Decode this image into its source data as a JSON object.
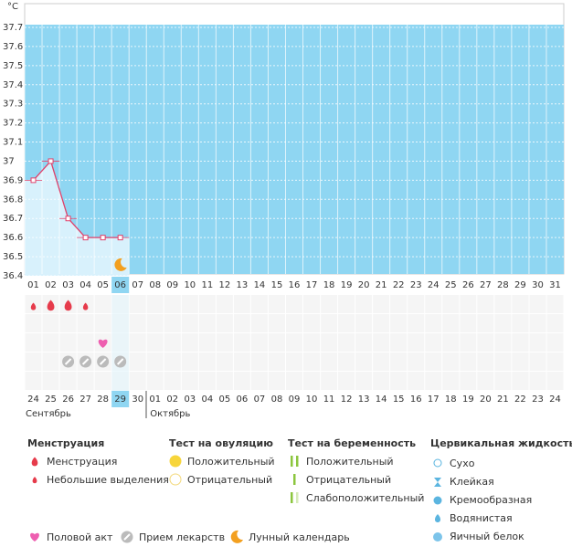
{
  "chart_data": {
    "type": "line",
    "unit": "°C",
    "ylim": [
      36.4,
      37.7
    ],
    "yticks": [
      36.4,
      36.5,
      36.6,
      36.7,
      36.8,
      36.9,
      37,
      37.1,
      37.2,
      37.3,
      37.4,
      37.5,
      37.6,
      37.7
    ],
    "categories": [
      "01",
      "02",
      "03",
      "04",
      "05",
      "06",
      "07",
      "08",
      "09",
      "10",
      "11",
      "12",
      "13",
      "14",
      "15",
      "16",
      "17",
      "18",
      "19",
      "20",
      "21",
      "22",
      "23",
      "24",
      "25",
      "26",
      "27",
      "28",
      "29",
      "30",
      "31"
    ],
    "values": [
      36.9,
      37,
      36.7,
      36.6,
      36.6,
      36.6,
      null,
      null,
      null,
      null,
      null,
      null,
      null,
      null,
      null,
      null,
      null,
      null,
      null,
      null,
      null,
      null,
      null,
      null,
      null,
      null,
      null,
      null,
      null,
      null,
      null
    ],
    "selected_day": 6,
    "menstruation_days": [
      2,
      3
    ],
    "spotting_days": [
      1,
      4
    ],
    "intercourse_days": [
      5
    ],
    "medication_days": [
      3,
      4,
      5,
      6
    ],
    "lunar_days": [
      6
    ],
    "dates": [
      "24",
      "25",
      "26",
      "27",
      "28",
      "29",
      "30",
      "01",
      "02",
      "03",
      "04",
      "05",
      "06",
      "07",
      "08",
      "09",
      "10",
      "11",
      "12",
      "13",
      "14",
      "15",
      "16",
      "17",
      "18",
      "19",
      "20",
      "21",
      "22",
      "23",
      "24"
    ],
    "weekend_dates": [
      2,
      3,
      9,
      10,
      16,
      17,
      23,
      24,
      30,
      31
    ],
    "months": [
      "Сентябрь",
      "Октябрь"
    ],
    "month_start_day": 8
  },
  "legend": {
    "menstruation": {
      "title": "Менструация",
      "items": [
        "Менструация",
        "Небольшие выделения"
      ]
    },
    "ovulation": {
      "title": "Тест на овуляцию",
      "items": [
        "Положительный",
        "Отрицательный"
      ]
    },
    "pregnancy": {
      "title": "Тест на беременность",
      "items": [
        "Положительный",
        "Отрицательный",
        "Слабоположительный"
      ]
    },
    "cervical": {
      "title": "Цервикальная жидкость",
      "items": [
        "Сухо",
        "Клейкая",
        "Кремообразная",
        "Водянистая",
        "Яичный белок"
      ]
    },
    "other": [
      "Половой акт",
      "Прием лекарств",
      "Лунный календарь"
    ]
  }
}
